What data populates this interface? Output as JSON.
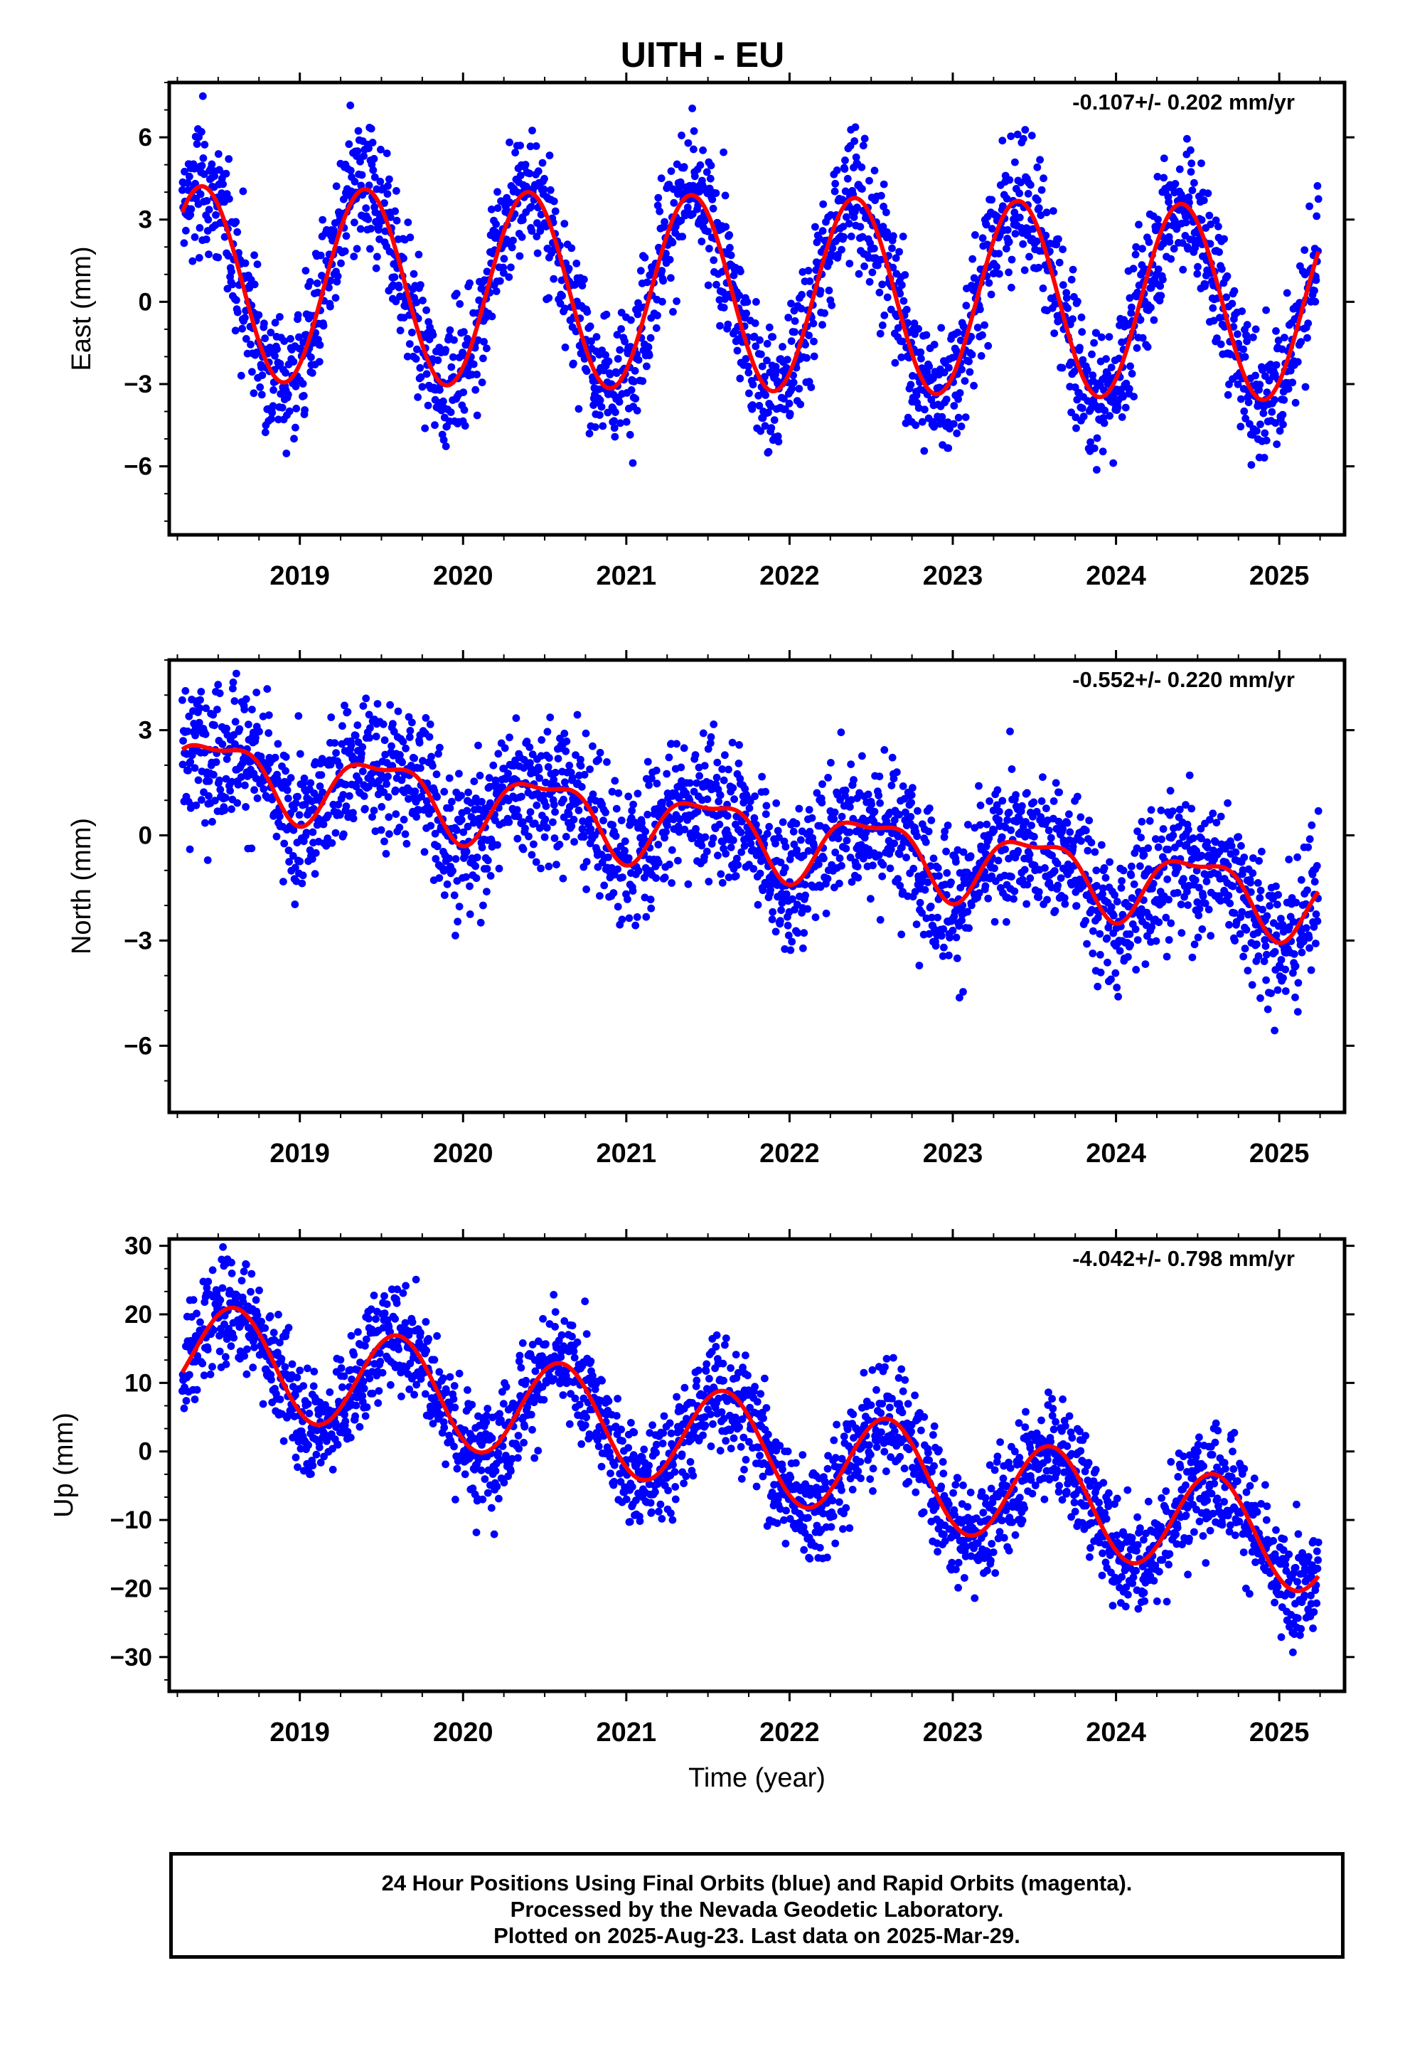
{
  "page": {
    "title": "UITH - EU"
  },
  "chart_data": [
    {
      "type": "scatter",
      "panel": "east",
      "ylabel": "East (mm)",
      "xlabel": "",
      "rate_annotation": "-0.107+/- 0.202 mm/yr",
      "xlim": [
        2018.2,
        2025.4
      ],
      "ylim": [
        -8.5,
        8
      ],
      "yticks": [
        -6,
        -3,
        0,
        3,
        6
      ],
      "ytick_labels": [
        "−6",
        "−3",
        "0",
        "3",
        "6"
      ],
      "xticks": [
        2019,
        2020,
        2021,
        2022,
        2023,
        2024,
        2025
      ],
      "xtick_labels": [
        "2019",
        "2020",
        "2021",
        "2022",
        "2023",
        "2024",
        "2025"
      ],
      "model": {
        "start": 2018.28,
        "end": 2025.24,
        "mean": 0.3,
        "rate": -0.107,
        "ref_epoch": 2021.8,
        "annual": [
          3.55,
          2019.4
        ],
        "semiannual": [
          0,
          2019.4
        ],
        "noise": 1.25
      },
      "series": [
        {
          "kind": "points",
          "color": "#0000ff"
        },
        {
          "kind": "fit",
          "color": "#ff0000"
        }
      ]
    },
    {
      "type": "scatter",
      "panel": "north",
      "ylabel": "North (mm)",
      "xlabel": "",
      "rate_annotation": "-0.552+/- 0.220 mm/yr",
      "xlim": [
        2018.2,
        2025.4
      ],
      "ylim": [
        -7.9,
        5
      ],
      "yticks": [
        -6,
        -3,
        0,
        3
      ],
      "ytick_labels": [
        "−6",
        "−3",
        "0",
        "3"
      ],
      "xticks": [
        2019,
        2020,
        2021,
        2022,
        2023,
        2024,
        2025
      ],
      "xtick_labels": [
        "2019",
        "2020",
        "2021",
        "2022",
        "2023",
        "2024",
        "2025"
      ],
      "model": {
        "start": 2018.28,
        "end": 2025.24,
        "mean": 0.0,
        "rate": -0.552,
        "ref_epoch": 2021.8,
        "annual": [
          0.95,
          2019.5
        ],
        "semiannual": [
          0.35,
          2019.75
        ],
        "noise": 1.0
      },
      "series": [
        {
          "kind": "points",
          "color": "#0000ff"
        },
        {
          "kind": "fit",
          "color": "#ff0000"
        }
      ]
    },
    {
      "type": "scatter",
      "panel": "up",
      "ylabel": "Up (mm)",
      "xlabel": "Time (year)",
      "rate_annotation": "-4.042+/- 0.798 mm/yr",
      "xlim": [
        2018.2,
        2025.4
      ],
      "ylim": [
        -35,
        31
      ],
      "yticks": [
        -30,
        -20,
        -10,
        0,
        10,
        20,
        30
      ],
      "ytick_labels": [
        "−30",
        "−20",
        "−10",
        "0",
        "10",
        "20",
        "30"
      ],
      "xticks": [
        2019,
        2020,
        2021,
        2022,
        2023,
        2024,
        2025
      ],
      "xtick_labels": [
        "2019",
        "2020",
        "2021",
        "2022",
        "2023",
        "2024",
        "2025"
      ],
      "model": {
        "start": 2018.28,
        "end": 2025.24,
        "mean": 0.5,
        "rate": -4.042,
        "ref_epoch": 2021.8,
        "annual": [
          7.5,
          2019.6
        ],
        "semiannual": [
          0,
          2019.6
        ],
        "noise": 4.0
      },
      "series": [
        {
          "kind": "points",
          "color": "#0000ff"
        },
        {
          "kind": "fit",
          "color": "#ff0000"
        }
      ]
    }
  ],
  "footer": {
    "line1": "24 Hour Positions Using Final Orbits (blue) and Rapid Orbits (magenta).",
    "line2": "Processed by the Nevada Geodetic Laboratory.",
    "line3": "Plotted on 2025-Aug-23. Last data on 2025-Mar-29."
  }
}
